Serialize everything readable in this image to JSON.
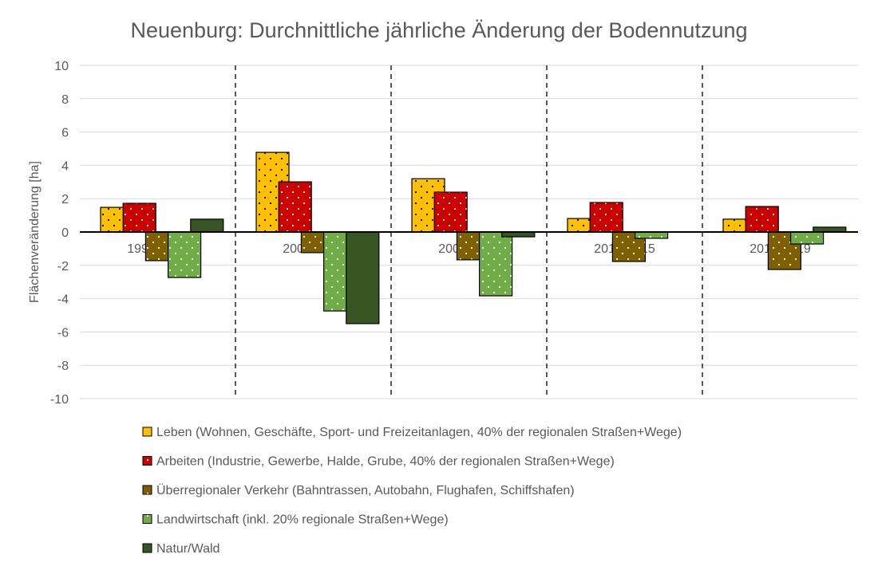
{
  "chart_data": {
    "type": "bar",
    "title": "Neuenburg: Durchnittliche jährliche Änderung der Bodennutzung",
    "xlabel": "",
    "ylabel": "Flächenveränderung [ha]",
    "ylim": [
      -10,
      10
    ],
    "yticks": [
      10,
      8,
      6,
      4,
      2,
      0,
      -2,
      -4,
      -6,
      -8,
      -10
    ],
    "grid": true,
    "legend_position": "bottom",
    "categories": [
      "1996-2000",
      "2000-2004",
      "2004-2010",
      "2010-2015",
      "2015-2019"
    ],
    "series": [
      {
        "name": "Leben (Wohnen, Geschäfte, Sport- und Freizeitanlagen, 40% der regionalen Straßen+Wege)",
        "color": "#FFC000",
        "dot": "#000000",
        "values": [
          1.48,
          4.78,
          3.2,
          0.81,
          0.77
        ]
      },
      {
        "name": "Arbeiten (Industrie, Gewerbe, Halde, Grube, 40% der regionalen Straßen+Wege)",
        "color": "#CC0000",
        "dot": "#ffffff",
        "values": [
          1.72,
          3.01,
          2.39,
          1.77,
          1.53
        ]
      },
      {
        "name": "Überregionaler Verkehr (Bahntrassen, Autobahn, Flughafen, Schiffshafen)",
        "color": "#7F6000",
        "dot": "#ffffff",
        "values": [
          -1.72,
          -1.24,
          -1.67,
          -1.77,
          -2.25
        ]
      },
      {
        "name": "Landwirtschaft (inkl. 20% regionale Straßen+Wege)",
        "color": "#70AD47",
        "dot": "#ffffff",
        "values": [
          -2.73,
          -4.74,
          -3.83,
          -0.38,
          -0.72
        ]
      },
      {
        "name": "Natur/Wald",
        "color": "#375623",
        "dot": null,
        "values": [
          0.77,
          -5.5,
          -0.29,
          0,
          0.29
        ]
      }
    ]
  }
}
